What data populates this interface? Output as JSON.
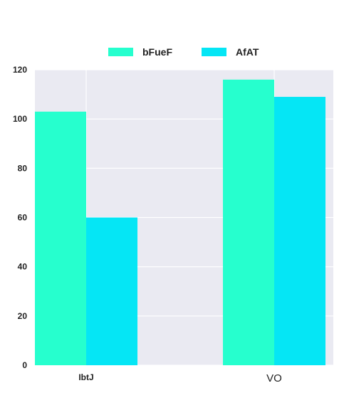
{
  "chart_data": {
    "type": "bar",
    "categories": [
      "IbtJ",
      "VO"
    ],
    "series": [
      {
        "name": "bFueF",
        "values": [
          103,
          116
        ],
        "color": "#26ffce"
      },
      {
        "name": "AfAT",
        "values": [
          60,
          109
        ],
        "color": "#05e6f5"
      }
    ],
    "ylim": [
      0,
      120
    ],
    "yticks": [
      0,
      20,
      40,
      60,
      80,
      100,
      120
    ],
    "title": "",
    "xlabel": "",
    "ylabel": "",
    "grid": true,
    "legend_position": "top-center",
    "plot_background": "#eaeaf2"
  }
}
